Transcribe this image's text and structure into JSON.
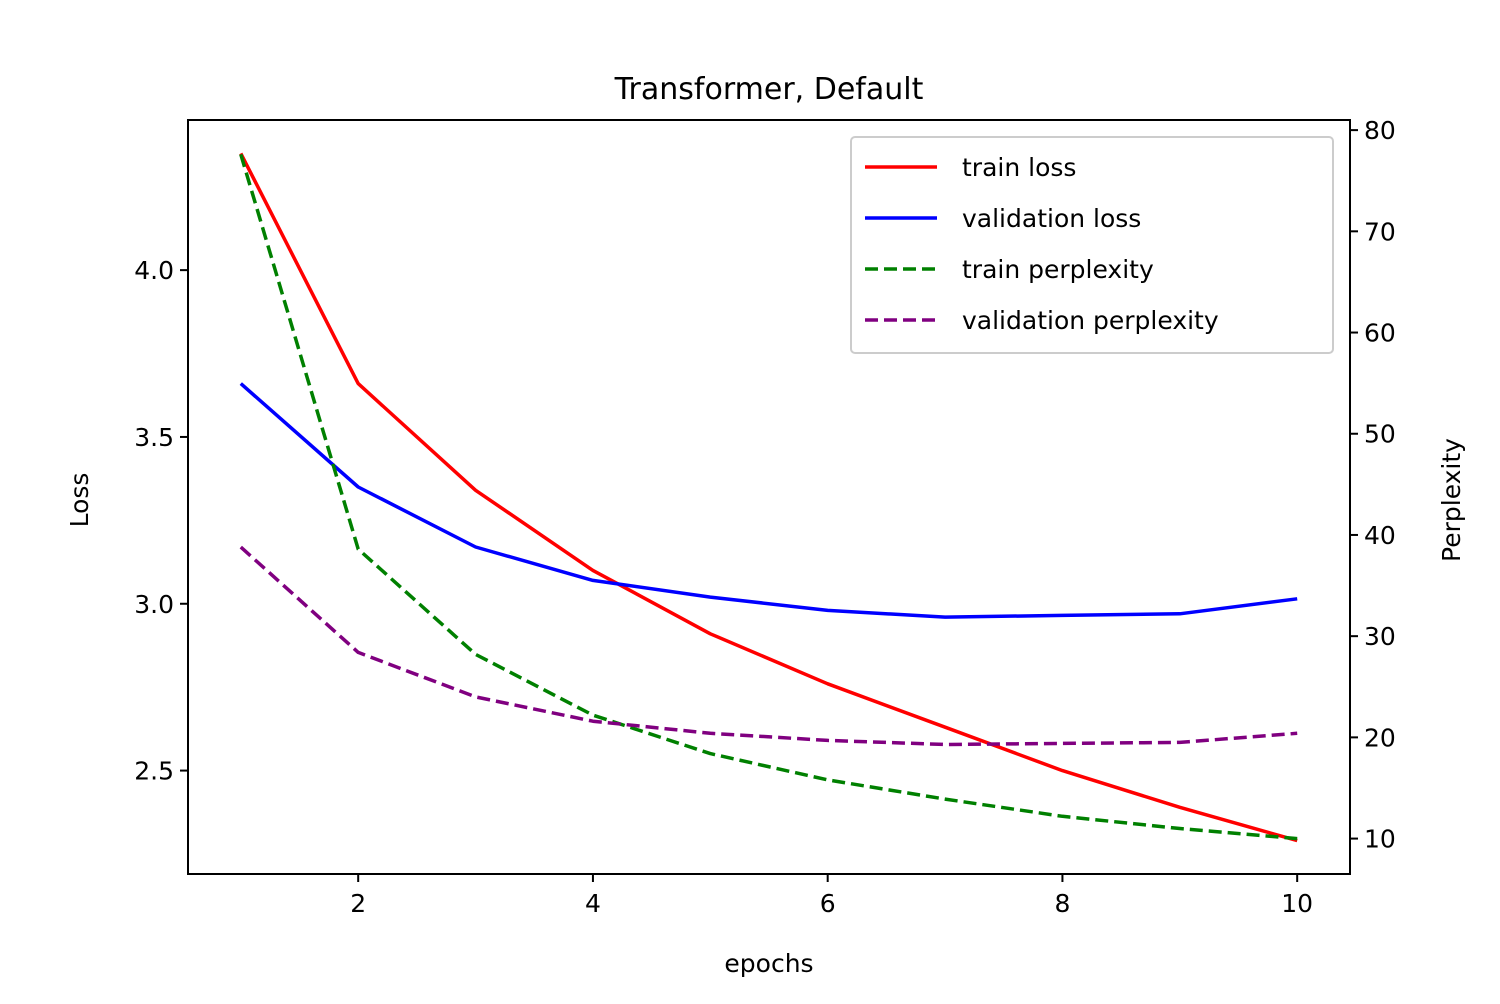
{
  "chart_data": {
    "type": "line",
    "title": "Transformer, Default",
    "xlabel": "epochs",
    "ylabel": "Loss",
    "y2label": "Perplexity",
    "x": [
      1,
      2,
      3,
      4,
      5,
      6,
      7,
      8,
      9,
      10
    ],
    "xlim": [
      0.55,
      10.45
    ],
    "ylim": [
      2.19,
      4.45
    ],
    "y2lim": [
      6.5,
      81
    ],
    "xticks": [
      2,
      4,
      6,
      8,
      10
    ],
    "xtick_labels": [
      "2",
      "4",
      "6",
      "8",
      "10"
    ],
    "yticks": [
      2.5,
      3.0,
      3.5,
      4.0
    ],
    "ytick_labels": [
      "2.5",
      "3.0",
      "3.5",
      "4.0"
    ],
    "y2ticks": [
      10,
      20,
      30,
      40,
      50,
      60,
      70,
      80
    ],
    "y2tick_labels": [
      "10",
      "20",
      "30",
      "40",
      "50",
      "60",
      "70",
      "80"
    ],
    "grid": false,
    "legend_position": "top-right",
    "series": [
      {
        "name": "train loss",
        "axis": "left",
        "color": "#ff0000",
        "dash": "solid",
        "values": [
          4.35,
          3.66,
          3.34,
          3.1,
          2.91,
          2.76,
          2.63,
          2.5,
          2.39,
          2.29
        ]
      },
      {
        "name": "validation loss",
        "axis": "left",
        "color": "#0000ff",
        "dash": "solid",
        "values": [
          3.66,
          3.35,
          3.17,
          3.07,
          3.02,
          2.98,
          2.96,
          2.965,
          2.97,
          3.015
        ]
      },
      {
        "name": "train perplexity",
        "axis": "right",
        "color": "#008000",
        "dash": "dashed",
        "values": [
          77.6,
          38.6,
          28.2,
          22.2,
          18.4,
          15.8,
          13.9,
          12.2,
          11.0,
          10.0
        ]
      },
      {
        "name": "validation perplexity",
        "axis": "right",
        "color": "#800080",
        "dash": "dashed",
        "values": [
          38.8,
          28.4,
          24.0,
          21.6,
          20.4,
          19.7,
          19.3,
          19.4,
          19.5,
          20.4
        ]
      }
    ]
  }
}
